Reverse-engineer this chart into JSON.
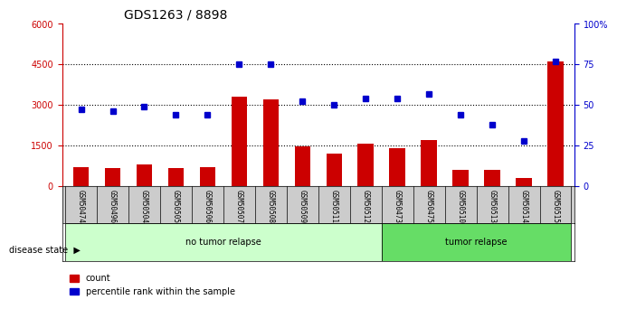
{
  "title": "GDS1263 / 8898",
  "samples": [
    "GSM50474",
    "GSM50496",
    "GSM50504",
    "GSM50505",
    "GSM50506",
    "GSM50507",
    "GSM50508",
    "GSM50509",
    "GSM50511",
    "GSM50512",
    "GSM50473",
    "GSM50475",
    "GSM50510",
    "GSM50513",
    "GSM50514",
    "GSM50515"
  ],
  "counts": [
    700,
    650,
    800,
    650,
    700,
    3300,
    3200,
    1450,
    1200,
    1550,
    1400,
    1700,
    600,
    600,
    300,
    4600
  ],
  "percentiles": [
    47,
    46,
    49,
    44,
    44,
    75,
    75,
    52,
    50,
    54,
    54,
    57,
    44,
    38,
    28,
    77
  ],
  "no_tumor_count": 10,
  "tumor_count": 6,
  "ylim_left": [
    0,
    6000
  ],
  "ylim_right": [
    0,
    100
  ],
  "yticks_left": [
    0,
    1500,
    3000,
    4500,
    6000
  ],
  "yticks_right": [
    0,
    25,
    50,
    75,
    100
  ],
  "bar_color": "#cc0000",
  "dot_color": "#0000cc",
  "no_tumor_color": "#ccffcc",
  "tumor_color": "#66dd66",
  "label_bg_color": "#cccccc",
  "disease_state_label": "disease state",
  "group1_label": "no tumor relapse",
  "group2_label": "tumor relapse",
  "legend_count": "count",
  "legend_pct": "percentile rank within the sample"
}
